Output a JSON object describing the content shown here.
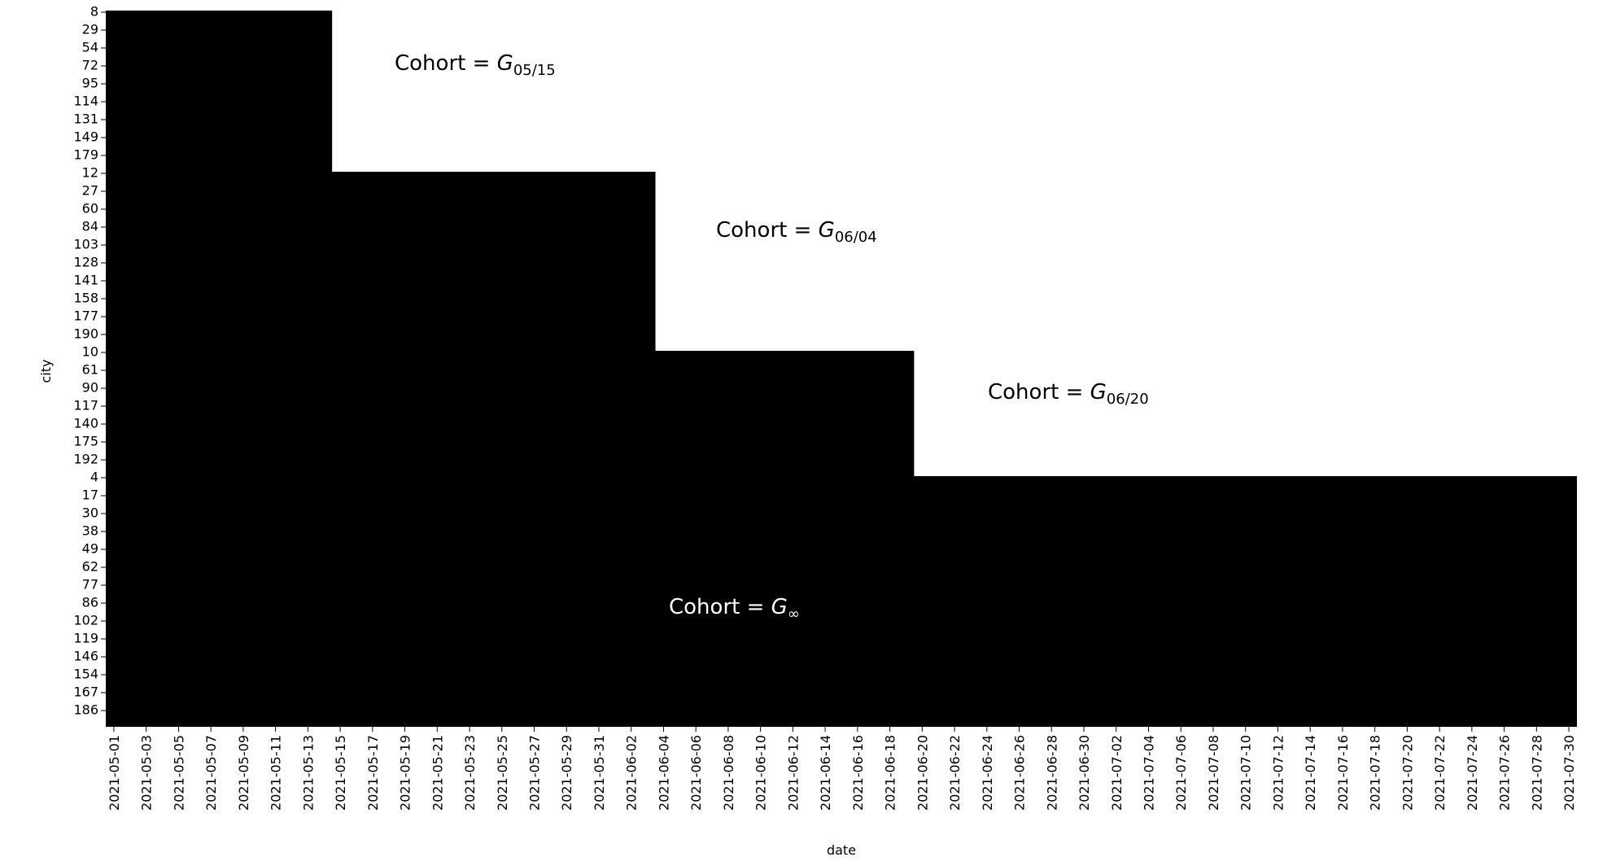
{
  "chart_data": {
    "type": "heatmap",
    "xlabel": "date",
    "ylabel": "city",
    "x": [
      "2021-05-01",
      null,
      "2021-05-03",
      null,
      "2021-05-05",
      null,
      "2021-05-07",
      null,
      "2021-05-09",
      null,
      "2021-05-11",
      null,
      "2021-05-13",
      null,
      "2021-05-15",
      null,
      "2021-05-17",
      null,
      "2021-05-19",
      null,
      "2021-05-21",
      null,
      "2021-05-23",
      null,
      "2021-05-25",
      null,
      "2021-05-27",
      null,
      "2021-05-29",
      null,
      "2021-05-31",
      null,
      "2021-06-02",
      null,
      "2021-06-04",
      null,
      "2021-06-06",
      null,
      "2021-06-08",
      null,
      "2021-06-10",
      null,
      "2021-06-12",
      null,
      "2021-06-14",
      null,
      "2021-06-16",
      null,
      "2021-06-18",
      null,
      "2021-06-20",
      null,
      "2021-06-22",
      null,
      "2021-06-24",
      null,
      "2021-06-26",
      null,
      "2021-06-28",
      null,
      "2021-06-30",
      null,
      "2021-07-02",
      null,
      "2021-07-04",
      null,
      "2021-07-06",
      null,
      "2021-07-08",
      null,
      "2021-07-10",
      null,
      "2021-07-12",
      null,
      "2021-07-14",
      null,
      "2021-07-16",
      null,
      "2021-07-18",
      null,
      "2021-07-20",
      null,
      "2021-07-22",
      null,
      "2021-07-24",
      null,
      "2021-07-26",
      null,
      "2021-07-28",
      null,
      "2021-07-30"
    ],
    "color": "#000000",
    "cohorts": [
      {
        "cities": [
          "8",
          "29",
          "54",
          "72",
          "95",
          "114",
          "131",
          "149",
          "179"
        ],
        "start": "2021-05-15",
        "label": "Cohort = ",
        "symbol": "G",
        "subscript": "05/15"
      },
      {
        "cities": [
          "12",
          "27",
          "60",
          "84",
          "103",
          "128",
          "141",
          "158",
          "177",
          "190"
        ],
        "start": "2021-06-04",
        "label": "Cohort = ",
        "symbol": "G",
        "subscript": "06/04"
      },
      {
        "cities": [
          "10",
          "61",
          "90",
          "117",
          "140",
          "175",
          "192"
        ],
        "start": "2021-06-20",
        "label": "Cohort = ",
        "symbol": "G",
        "subscript": "06/20"
      },
      {
        "cities": [
          "4",
          "17",
          "30",
          "38",
          "49",
          "62",
          "77",
          "86",
          "102",
          "119",
          "146",
          "154",
          "167",
          "186"
        ],
        "start": null,
        "label": "Cohort = ",
        "symbol": "G",
        "subscript": "∞"
      }
    ]
  }
}
